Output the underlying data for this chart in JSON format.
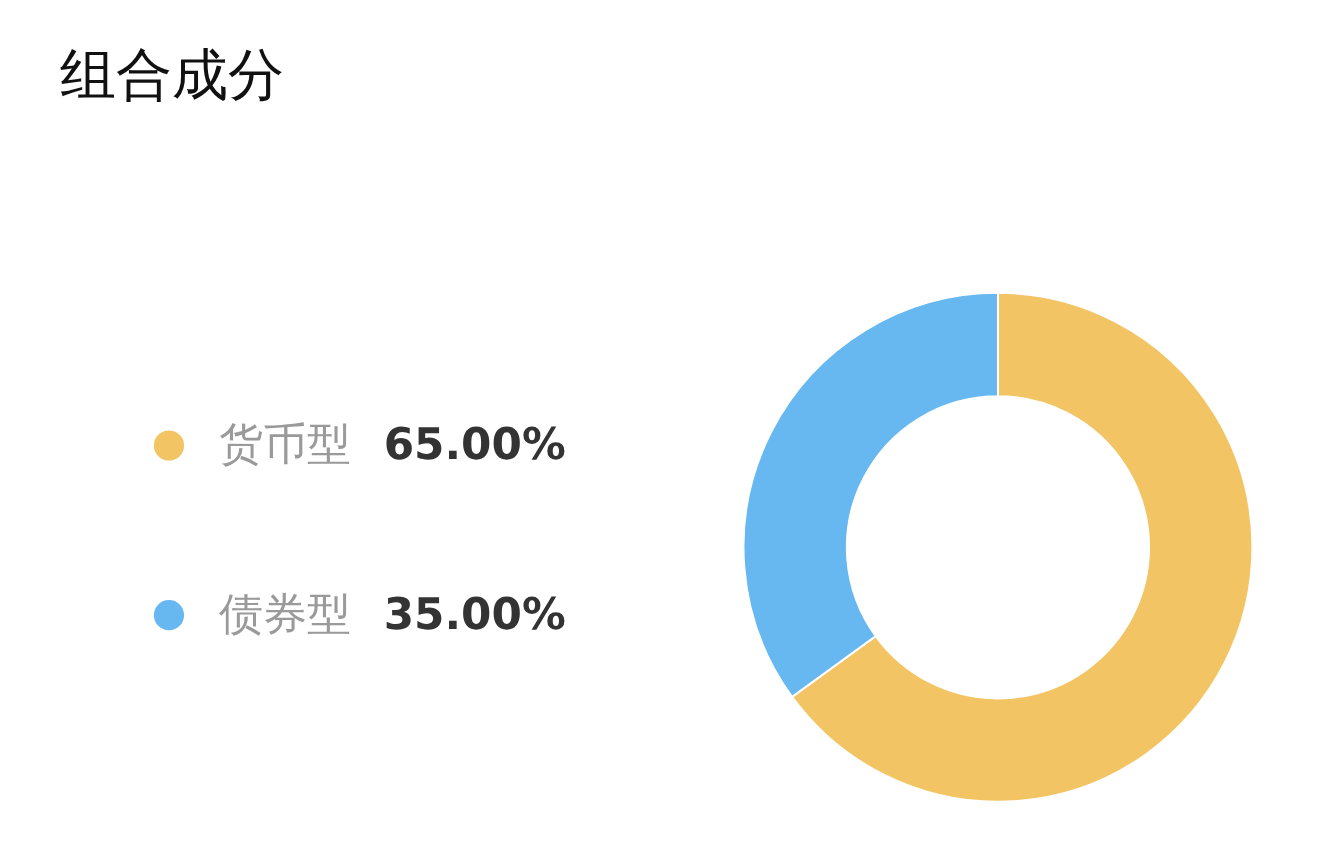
{
  "chart_data": {
    "type": "donut",
    "title": "组合成分",
    "categories": [
      "货币型",
      "债券型"
    ],
    "values": [
      65,
      35
    ],
    "colors": [
      "#f2c464",
      "#67b7f1"
    ],
    "value_labels": [
      "65.00%",
      "35.00%"
    ],
    "legend": "left"
  }
}
